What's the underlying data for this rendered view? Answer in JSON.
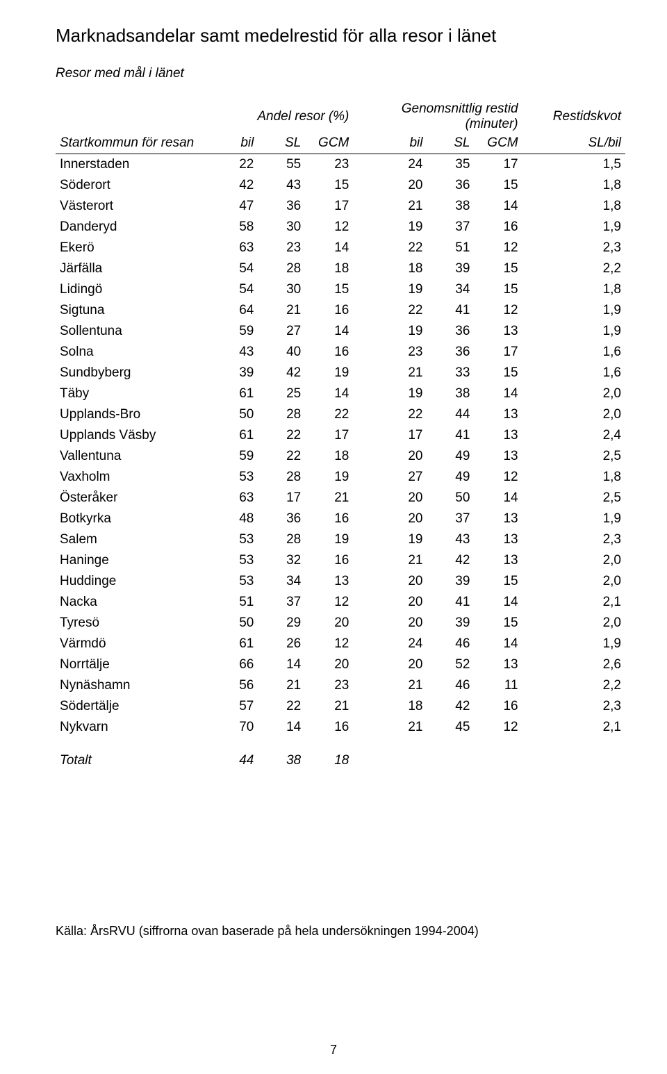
{
  "title": "Marknadsandelar samt medelrestid för alla resor i länet",
  "subtitle": "Resor med mål i länet",
  "colors": {
    "text": "#000000",
    "background": "#ffffff",
    "rule": "#000000"
  },
  "typography": {
    "family": "Arial",
    "title_size_pt": 20,
    "subtitle_size_pt": 14,
    "body_size_pt": 14
  },
  "table": {
    "group_headers": {
      "share": "Andel resor (%)",
      "travel_time": "Genomsnittlig restid (minuter)",
      "ratio": "Restidskvot"
    },
    "sub_headers": {
      "start": "Startkommun för resan",
      "bil": "bil",
      "sl": "SL",
      "gcm": "GCM",
      "slbil": "SL/bil"
    },
    "rows": [
      {
        "name": "Innerstaden",
        "a_bil": 22,
        "a_sl": 55,
        "a_gcm": 23,
        "t_bil": 24,
        "t_sl": 35,
        "t_gcm": 17,
        "ratio": "1,5"
      },
      {
        "name": "Söderort",
        "a_bil": 42,
        "a_sl": 43,
        "a_gcm": 15,
        "t_bil": 20,
        "t_sl": 36,
        "t_gcm": 15,
        "ratio": "1,8"
      },
      {
        "name": "Västerort",
        "a_bil": 47,
        "a_sl": 36,
        "a_gcm": 17,
        "t_bil": 21,
        "t_sl": 38,
        "t_gcm": 14,
        "ratio": "1,8"
      },
      {
        "name": "Danderyd",
        "a_bil": 58,
        "a_sl": 30,
        "a_gcm": 12,
        "t_bil": 19,
        "t_sl": 37,
        "t_gcm": 16,
        "ratio": "1,9"
      },
      {
        "name": "Ekerö",
        "a_bil": 63,
        "a_sl": 23,
        "a_gcm": 14,
        "t_bil": 22,
        "t_sl": 51,
        "t_gcm": 12,
        "ratio": "2,3"
      },
      {
        "name": "Järfälla",
        "a_bil": 54,
        "a_sl": 28,
        "a_gcm": 18,
        "t_bil": 18,
        "t_sl": 39,
        "t_gcm": 15,
        "ratio": "2,2"
      },
      {
        "name": "Lidingö",
        "a_bil": 54,
        "a_sl": 30,
        "a_gcm": 15,
        "t_bil": 19,
        "t_sl": 34,
        "t_gcm": 15,
        "ratio": "1,8"
      },
      {
        "name": "Sigtuna",
        "a_bil": 64,
        "a_sl": 21,
        "a_gcm": 16,
        "t_bil": 22,
        "t_sl": 41,
        "t_gcm": 12,
        "ratio": "1,9"
      },
      {
        "name": "Sollentuna",
        "a_bil": 59,
        "a_sl": 27,
        "a_gcm": 14,
        "t_bil": 19,
        "t_sl": 36,
        "t_gcm": 13,
        "ratio": "1,9"
      },
      {
        "name": "Solna",
        "a_bil": 43,
        "a_sl": 40,
        "a_gcm": 16,
        "t_bil": 23,
        "t_sl": 36,
        "t_gcm": 17,
        "ratio": "1,6"
      },
      {
        "name": "Sundbyberg",
        "a_bil": 39,
        "a_sl": 42,
        "a_gcm": 19,
        "t_bil": 21,
        "t_sl": 33,
        "t_gcm": 15,
        "ratio": "1,6"
      },
      {
        "name": "Täby",
        "a_bil": 61,
        "a_sl": 25,
        "a_gcm": 14,
        "t_bil": 19,
        "t_sl": 38,
        "t_gcm": 14,
        "ratio": "2,0"
      },
      {
        "name": "Upplands-Bro",
        "a_bil": 50,
        "a_sl": 28,
        "a_gcm": 22,
        "t_bil": 22,
        "t_sl": 44,
        "t_gcm": 13,
        "ratio": "2,0"
      },
      {
        "name": "Upplands Väsby",
        "a_bil": 61,
        "a_sl": 22,
        "a_gcm": 17,
        "t_bil": 17,
        "t_sl": 41,
        "t_gcm": 13,
        "ratio": "2,4"
      },
      {
        "name": "Vallentuna",
        "a_bil": 59,
        "a_sl": 22,
        "a_gcm": 18,
        "t_bil": 20,
        "t_sl": 49,
        "t_gcm": 13,
        "ratio": "2,5"
      },
      {
        "name": "Vaxholm",
        "a_bil": 53,
        "a_sl": 28,
        "a_gcm": 19,
        "t_bil": 27,
        "t_sl": 49,
        "t_gcm": 12,
        "ratio": "1,8"
      },
      {
        "name": "Österåker",
        "a_bil": 63,
        "a_sl": 17,
        "a_gcm": 21,
        "t_bil": 20,
        "t_sl": 50,
        "t_gcm": 14,
        "ratio": "2,5"
      },
      {
        "name": "Botkyrka",
        "a_bil": 48,
        "a_sl": 36,
        "a_gcm": 16,
        "t_bil": 20,
        "t_sl": 37,
        "t_gcm": 13,
        "ratio": "1,9"
      },
      {
        "name": "Salem",
        "a_bil": 53,
        "a_sl": 28,
        "a_gcm": 19,
        "t_bil": 19,
        "t_sl": 43,
        "t_gcm": 13,
        "ratio": "2,3"
      },
      {
        "name": "Haninge",
        "a_bil": 53,
        "a_sl": 32,
        "a_gcm": 16,
        "t_bil": 21,
        "t_sl": 42,
        "t_gcm": 13,
        "ratio": "2,0"
      },
      {
        "name": "Huddinge",
        "a_bil": 53,
        "a_sl": 34,
        "a_gcm": 13,
        "t_bil": 20,
        "t_sl": 39,
        "t_gcm": 15,
        "ratio": "2,0"
      },
      {
        "name": "Nacka",
        "a_bil": 51,
        "a_sl": 37,
        "a_gcm": 12,
        "t_bil": 20,
        "t_sl": 41,
        "t_gcm": 14,
        "ratio": "2,1"
      },
      {
        "name": "Tyresö",
        "a_bil": 50,
        "a_sl": 29,
        "a_gcm": 20,
        "t_bil": 20,
        "t_sl": 39,
        "t_gcm": 15,
        "ratio": "2,0"
      },
      {
        "name": "Värmdö",
        "a_bil": 61,
        "a_sl": 26,
        "a_gcm": 12,
        "t_bil": 24,
        "t_sl": 46,
        "t_gcm": 14,
        "ratio": "1,9"
      },
      {
        "name": "Norrtälje",
        "a_bil": 66,
        "a_sl": 14,
        "a_gcm": 20,
        "t_bil": 20,
        "t_sl": 52,
        "t_gcm": 13,
        "ratio": "2,6"
      },
      {
        "name": "Nynäshamn",
        "a_bil": 56,
        "a_sl": 21,
        "a_gcm": 23,
        "t_bil": 21,
        "t_sl": 46,
        "t_gcm": 11,
        "ratio": "2,2"
      },
      {
        "name": "Södertälje",
        "a_bil": 57,
        "a_sl": 22,
        "a_gcm": 21,
        "t_bil": 18,
        "t_sl": 42,
        "t_gcm": 16,
        "ratio": "2,3"
      },
      {
        "name": "Nykvarn",
        "a_bil": 70,
        "a_sl": 14,
        "a_gcm": 16,
        "t_bil": 21,
        "t_sl": 45,
        "t_gcm": 12,
        "ratio": "2,1"
      }
    ],
    "total": {
      "label": "Totalt",
      "a_bil": 44,
      "a_sl": 38,
      "a_gcm": 18
    }
  },
  "footnote": "Källa: ÅrsRVU (siffrorna ovan baserade på hela undersökningen 1994-2004)",
  "page_number": "7"
}
